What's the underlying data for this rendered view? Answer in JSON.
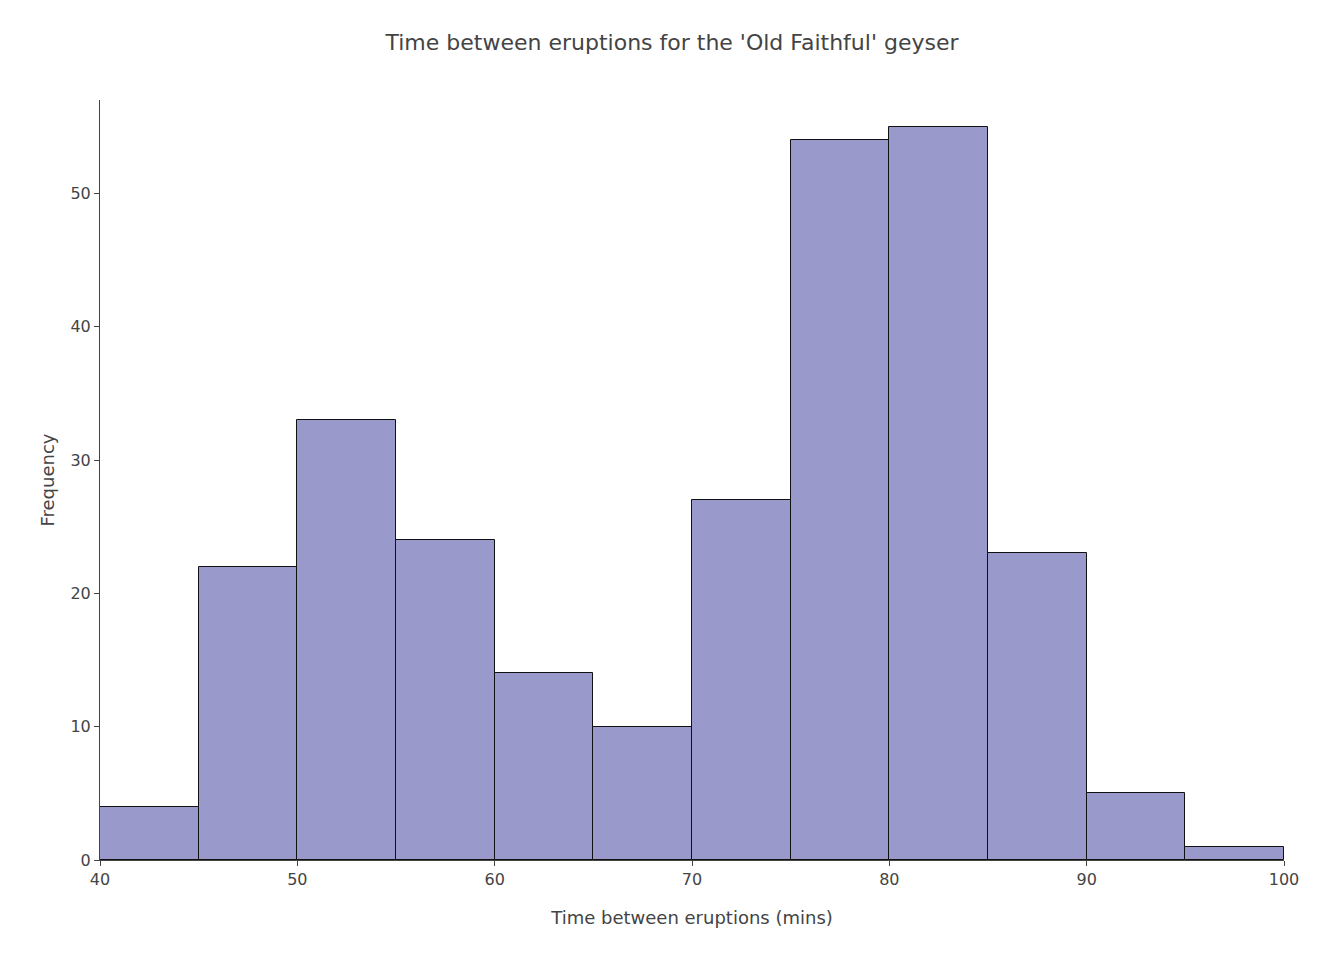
{
  "chart_data": {
    "type": "histogram",
    "title": "Time between eruptions for the 'Old Faithful' geyser",
    "xlabel": "Time between eruptions (mins)",
    "ylabel": "Frequency",
    "bins": [
      40,
      45,
      50,
      55,
      60,
      65,
      70,
      75,
      80,
      85,
      90,
      95,
      100
    ],
    "values": [
      4,
      22,
      33,
      24,
      14,
      10,
      27,
      54,
      55,
      23,
      5,
      1
    ],
    "color": "#9999cc",
    "xlim": [
      40,
      100
    ],
    "ylim": [
      0,
      57
    ],
    "xticks": [
      40,
      50,
      60,
      70,
      80,
      90,
      100
    ],
    "yticks": [
      0,
      10,
      20,
      30,
      40,
      50
    ],
    "grid": false
  }
}
